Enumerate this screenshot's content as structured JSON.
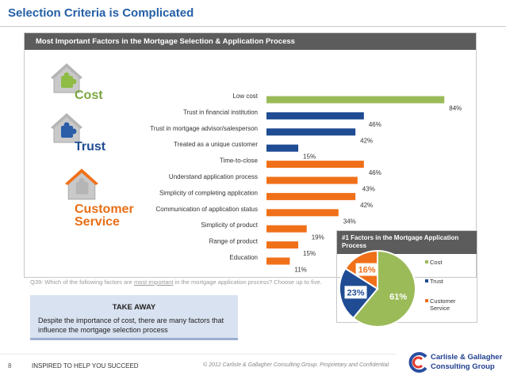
{
  "header": {
    "title": "Selection Criteria is Complicated"
  },
  "panel": {
    "title": "Most Important Factors in the Mortgage Selection & Application Process"
  },
  "categories": {
    "cost": "Cost",
    "trust": "Trust",
    "service": "Customer Service"
  },
  "colors": {
    "cost": "#9bbb59",
    "trust": "#1f4c93",
    "service": "#f07019",
    "accent": "#2460a7"
  },
  "chart_data": [
    {
      "type": "bar",
      "orientation": "horizontal",
      "categories": [
        "Low cost",
        "Trust in financial institution",
        "Trust in mortgage advisor/salesperson",
        "Treated as a unique customer",
        "Time-to-close",
        "Understand application process",
        "Simplicity of completing application",
        "Communication of application status",
        "Simplicity of product",
        "Range of product",
        "Education"
      ],
      "values": [
        84,
        46,
        42,
        15,
        46,
        43,
        42,
        34,
        19,
        15,
        11
      ],
      "value_labels": [
        "84%",
        "46%",
        "42%",
        "15%",
        "46%",
        "43%",
        "42%",
        "34%",
        "19%",
        "15%",
        "11%"
      ],
      "groups": [
        "cost",
        "trust",
        "trust",
        "trust",
        "service",
        "service",
        "service",
        "service",
        "service",
        "service",
        "service"
      ],
      "xlim": [
        0,
        100
      ]
    },
    {
      "type": "pie",
      "title": "#1 Factors in the Mortgage Application Process",
      "labels": [
        "Cost",
        "Trust",
        "Customer Service"
      ],
      "values": [
        61,
        23,
        16
      ],
      "value_labels": [
        "61%",
        "23%",
        "16%"
      ]
    }
  ],
  "question": {
    "pre": "Q39: Which of the following factors are ",
    "emph": "most important",
    "post": " in the mortgage application process? Choose up to five."
  },
  "takeaway": {
    "title": "TAKE AWAY",
    "body": "Despite the importance of cost, there are many factors that influence the mortgage selection process"
  },
  "footer": {
    "page": "8",
    "tagline": "INSPIRED TO HELP YOU SUCCEED",
    "copyright": "© 2012 Carlisle & Gallagher Consulting Group.  Proprietary and Confidential.",
    "logo_line1": "Carlisle & Gallagher",
    "logo_line2": "Consulting Group"
  }
}
